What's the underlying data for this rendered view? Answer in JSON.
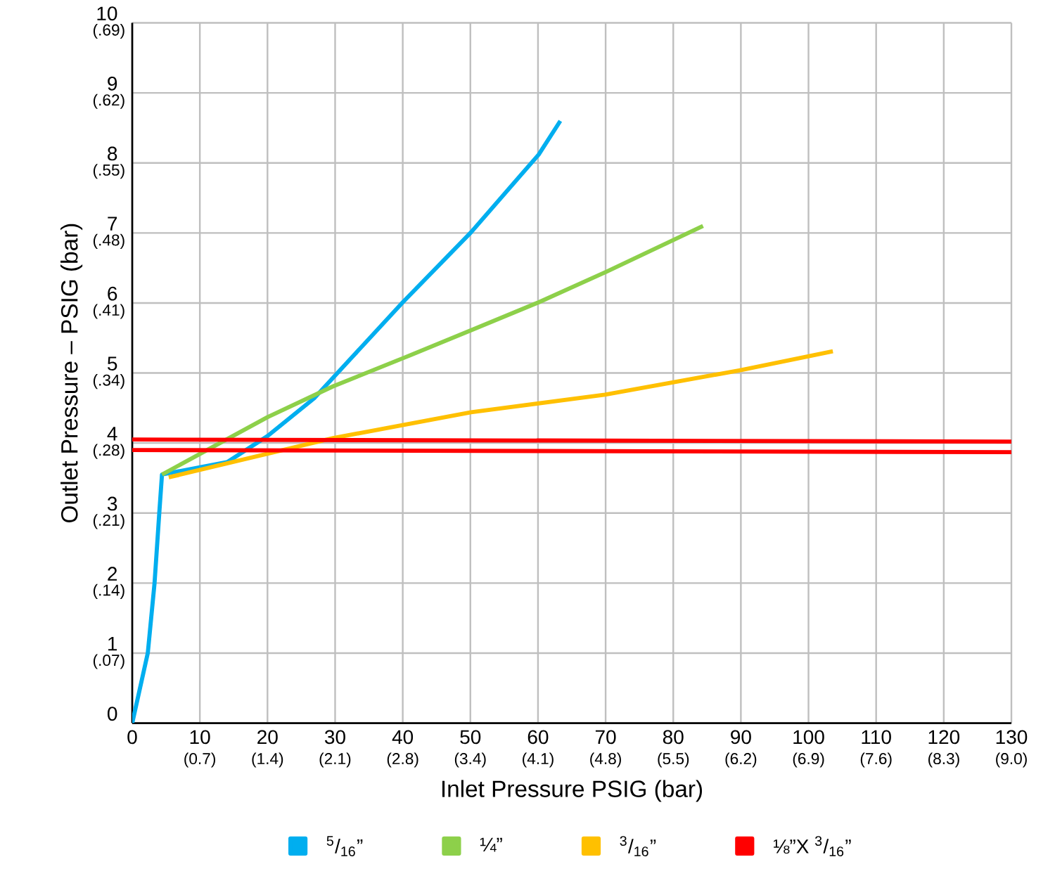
{
  "chart_data": {
    "type": "line",
    "xlabel": "Inlet Pressure PSIG (bar)",
    "ylabel": "Outlet Pressure – PSIG (bar)",
    "xlim": [
      0,
      130
    ],
    "ylim": [
      0,
      10
    ],
    "xticks": [
      0,
      10,
      20,
      30,
      40,
      50,
      60,
      70,
      80,
      90,
      100,
      110,
      120,
      130
    ],
    "yticks": [
      0,
      1,
      2,
      3,
      4,
      5,
      6,
      7,
      8,
      9,
      10
    ],
    "x2lim": [
      0,
      8.963
    ],
    "x2ticks": [
      {
        "value": 0.689,
        "label": "(0.7)"
      },
      {
        "value": 1.379,
        "label": "(1.4)"
      },
      {
        "value": 2.068,
        "label": "(2.1)"
      },
      {
        "value": 2.758,
        "label": "(2.8)"
      },
      {
        "value": 3.447,
        "label": "(3.4)"
      },
      {
        "value": 4.137,
        "label": "(4.1)"
      },
      {
        "value": 4.826,
        "label": "(4.8)"
      },
      {
        "value": 5.516,
        "label": "(5.5)"
      },
      {
        "value": 6.205,
        "label": "(6.2)"
      },
      {
        "value": 6.895,
        "label": "(6.9)"
      },
      {
        "value": 7.584,
        "label": "(7.6)"
      },
      {
        "value": 8.274,
        "label": "(8.3)"
      },
      {
        "value": 8.963,
        "label": "(9.0)"
      }
    ],
    "y2lim": [
      0,
      0.6895
    ],
    "y2ticks": [
      {
        "value": 0.0689,
        "label": "(.07)"
      },
      {
        "value": 0.1379,
        "label": "(.14)"
      },
      {
        "value": 0.2068,
        "label": "(.21)"
      },
      {
        "value": 0.2758,
        "label": "(.28)"
      },
      {
        "value": 0.3447,
        "label": "(.34)"
      },
      {
        "value": 0.4137,
        "label": "(.41)"
      },
      {
        "value": 0.4826,
        "label": "(.48)"
      },
      {
        "value": 0.5516,
        "label": "(.55)"
      },
      {
        "value": 0.6205,
        "label": "(.62)"
      },
      {
        "value": 0.6895,
        "label": "(.69)"
      }
    ],
    "grid": true,
    "legend": "bottom",
    "marker": "none",
    "line_style": "solid",
    "series": [
      {
        "name": "$^{5}$/$_{16}$”",
        "color": "#00aeef",
        "x": [
          0,
          2.3,
          3.3,
          4.0,
          4.4,
          14.1,
          20,
          26.9,
          40,
          50.1,
          60.1,
          63.3
        ],
        "values": [
          0,
          1,
          2,
          3,
          3.55,
          3.73,
          4.1,
          4.64,
          6.01,
          7.01,
          8.12,
          8.6
        ]
      },
      {
        "name": "¼”",
        "color": "#8dd04a",
        "x": [
          4.4,
          20,
          29.7,
          40,
          50.1,
          60.1,
          70.2,
          84.4
        ],
        "values": [
          3.55,
          4.37,
          4.81,
          5.21,
          5.61,
          6.01,
          6.45,
          7.1
        ]
      },
      {
        "name": "$^{3}$/$_{16}$”",
        "color": "#ffc000",
        "x": [
          5.4,
          29.7,
          50.1,
          69.9,
          89.9,
          103.6
        ],
        "values": [
          3.51,
          4.07,
          4.44,
          4.69,
          5.04,
          5.31
        ]
      },
      {
        "name": "⅛”X $^{3}$/$_{16}$”",
        "color": "#ff0000",
        "x": [
          0,
          130
        ],
        "values": [
          4.05,
          4.02
        ]
      },
      {
        "color": "#ff0000",
        "x": [
          0,
          130
        ],
        "values": [
          3.9,
          3.87
        ]
      }
    ]
  }
}
